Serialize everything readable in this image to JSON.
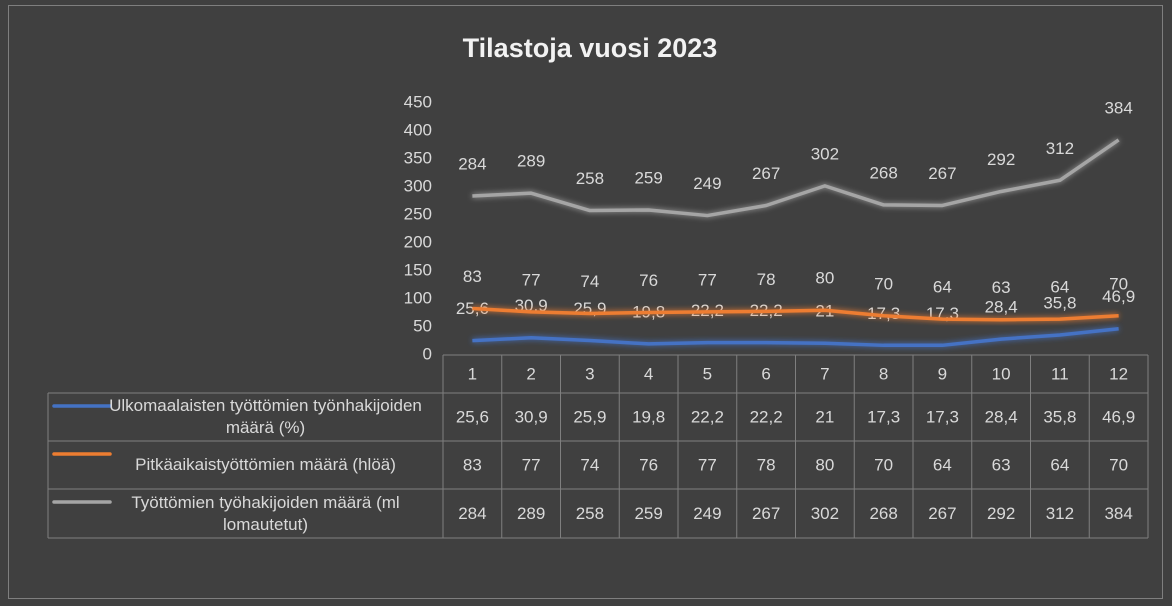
{
  "chart_data": {
    "type": "line",
    "title": "Tilastoja vuosi 2023",
    "categories": [
      "1",
      "2",
      "3",
      "4",
      "5",
      "6",
      "7",
      "8",
      "9",
      "10",
      "11",
      "12"
    ],
    "ylim": [
      0,
      450
    ],
    "yticks": [
      0,
      50,
      100,
      150,
      200,
      250,
      300,
      350,
      400,
      450
    ],
    "series": [
      {
        "name": "Ulkomaalaisten työttömien työnhakijoiden määrä (%)",
        "color": "#4472c4",
        "values": [
          25.6,
          30.9,
          25.9,
          19.8,
          22.2,
          22.2,
          21,
          17.3,
          17.3,
          28.4,
          35.8,
          46.9
        ],
        "value_labels": [
          "25,6",
          "30,9",
          "25,9",
          "19,8",
          "22,2",
          "22,2",
          "21",
          "17,3",
          "17,3",
          "28,4",
          "35,8",
          "46,9"
        ]
      },
      {
        "name": "Pitkäaikaistyöttömien määrä (hlöä)",
        "color": "#ed7d31",
        "values": [
          83,
          77,
          74,
          76,
          77,
          78,
          80,
          70,
          64,
          63,
          64,
          70
        ]
      },
      {
        "name": "Työttömien työhakijoiden määrä (ml lomautetut)",
        "color": "#a5a5a5",
        "values": [
          284,
          289,
          258,
          259,
          249,
          267,
          302,
          268,
          267,
          292,
          312,
          384
        ]
      }
    ]
  }
}
